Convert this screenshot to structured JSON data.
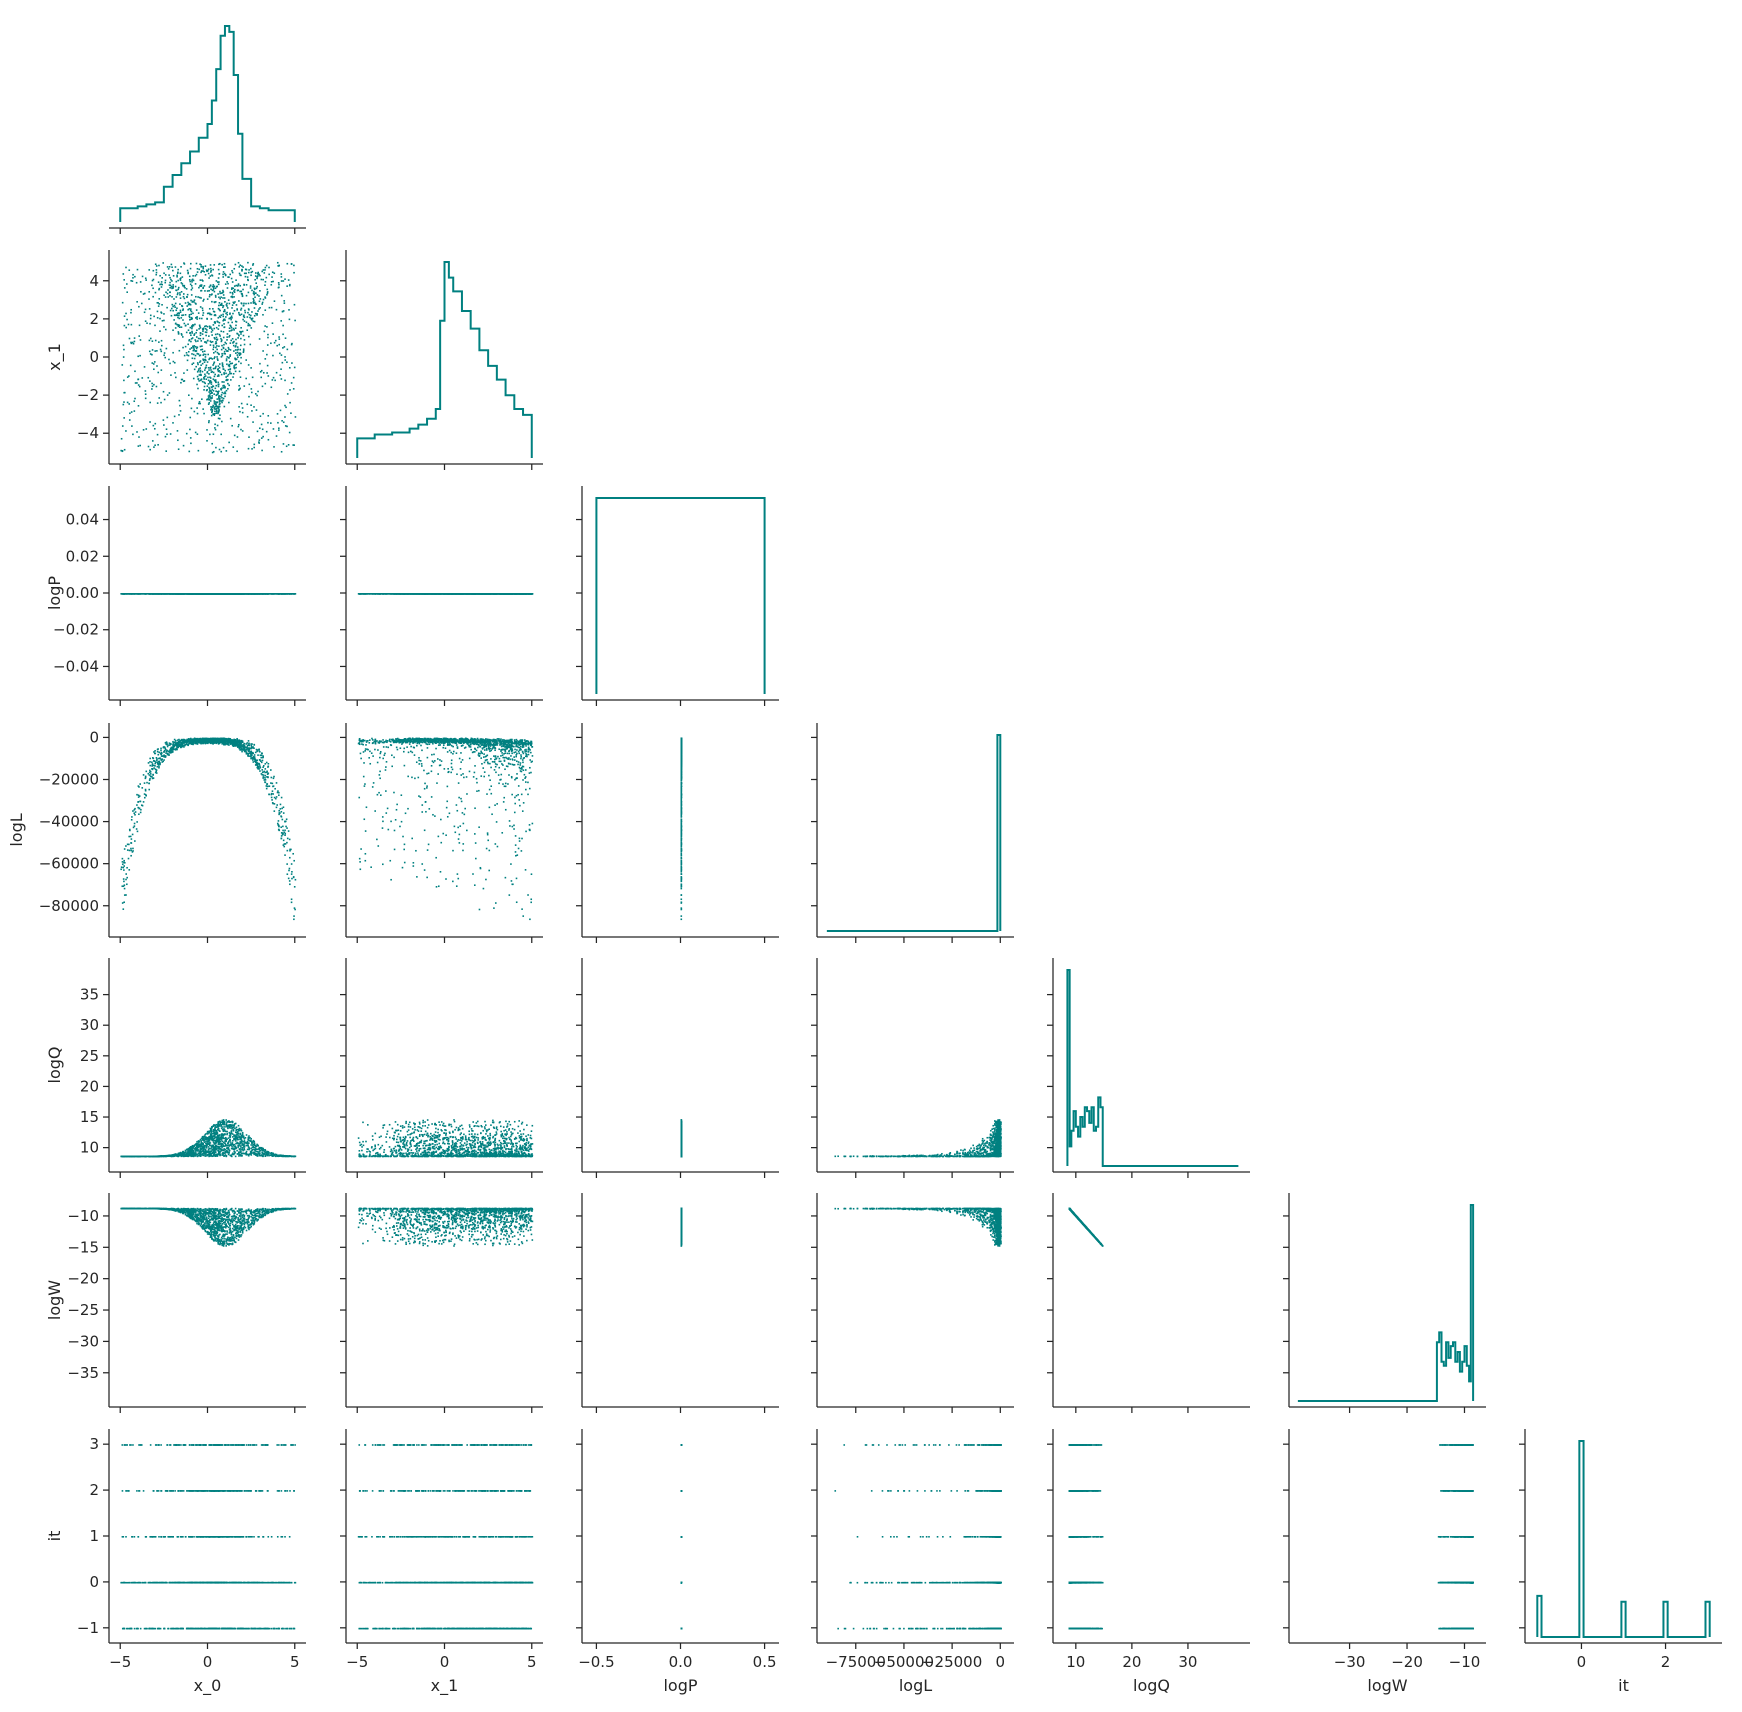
{
  "chart_data": {
    "type": "scatter",
    "title": "",
    "variables": [
      "x_0",
      "x_1",
      "logP",
      "logL",
      "logQ",
      "logW",
      "it"
    ],
    "color": "#008080",
    "layout": "corner",
    "grid": false,
    "axes": {
      "x_0": {
        "range": [
          -5.3,
          5.3
        ],
        "ticks": [
          -5,
          0,
          5
        ],
        "tick_labels": [
          "−5",
          "0",
          "5"
        ]
      },
      "x_1": {
        "range": [
          -5.3,
          5.3
        ],
        "ticks": [
          -4,
          -2,
          0,
          2,
          4
        ],
        "tick_labels": [
          "−4",
          "−2",
          "0",
          "2",
          "4"
        ],
        "bottom_ticks": [
          -5,
          0,
          5
        ],
        "bottom_tick_labels": [
          "−5",
          "0",
          "5"
        ]
      },
      "logP": {
        "range": [
          -0.055,
          0.055
        ],
        "ticks": [
          -0.04,
          -0.02,
          0.0,
          0.02,
          0.04
        ],
        "tick_labels": [
          "−0.04",
          "−0.02",
          "0.00",
          "0.02",
          "0.04"
        ],
        "bottom_range": [
          -0.55,
          0.55
        ],
        "bottom_ticks": [
          -0.5,
          0.0,
          0.5
        ],
        "bottom_tick_labels": [
          "−0.5",
          "0.0",
          "0.5"
        ]
      },
      "logL": {
        "range": [
          -92000,
          4000
        ],
        "ticks": [
          -80000,
          -60000,
          -40000,
          -20000,
          0
        ],
        "tick_labels": [
          "−80000",
          "−60000",
          "−40000",
          "−20000",
          "0"
        ],
        "bottom_ticks": [
          -75000,
          -50000,
          -25000,
          0
        ],
        "bottom_tick_labels": [
          "−75000",
          "−50000",
          "−25000",
          "0"
        ]
      },
      "logQ": {
        "range": [
          7.0,
          40.0
        ],
        "ticks": [
          10,
          15,
          20,
          25,
          30,
          35
        ],
        "tick_labels": [
          "10",
          "15",
          "20",
          "25",
          "30",
          "35"
        ],
        "bottom_ticks": [
          10,
          20,
          30
        ],
        "bottom_tick_labels": [
          "10",
          "20",
          "30"
        ]
      },
      "logW": {
        "range": [
          -39.5,
          -7.3
        ],
        "ticks": [
          -35,
          -30,
          -25,
          -20,
          -15,
          -10
        ],
        "tick_labels": [
          "−35",
          "−30",
          "−25",
          "−20",
          "−15",
          "−10"
        ],
        "bottom_ticks": [
          -30,
          -20,
          -10
        ],
        "bottom_tick_labels": [
          "−30",
          "−20",
          "−10"
        ]
      },
      "it": {
        "range": [
          -1.2,
          3.2
        ],
        "ticks": [
          -1,
          0,
          1,
          2,
          3
        ],
        "tick_labels": [
          "−1",
          "0",
          "1",
          "2",
          "3"
        ],
        "bottom_ticks": [
          0,
          2
        ],
        "bottom_tick_labels": [
          "0",
          "2"
        ]
      }
    },
    "histograms": {
      "x_0": {
        "edges": [
          -5,
          -4.5,
          -4,
          -3.5,
          -3,
          -2.5,
          -2,
          -1.5,
          -1,
          -0.5,
          0,
          0.25,
          0.5,
          0.75,
          1,
          1.25,
          1.5,
          1.75,
          2,
          2.5,
          3,
          3.5,
          4,
          4.5,
          5
        ],
        "counts": [
          0.07,
          0.07,
          0.08,
          0.09,
          0.1,
          0.18,
          0.24,
          0.3,
          0.36,
          0.43,
          0.5,
          0.62,
          0.78,
          0.95,
          1.0,
          0.97,
          0.75,
          0.45,
          0.22,
          0.08,
          0.07,
          0.06,
          0.06,
          0.06
        ]
      },
      "x_1": {
        "edges": [
          -5,
          -4,
          -3,
          -2,
          -1.5,
          -1,
          -0.5,
          -0.25,
          0,
          0.25,
          0.5,
          1,
          1.5,
          2,
          2.5,
          3,
          3.5,
          4,
          4.5,
          5
        ],
        "counts": [
          0.1,
          0.12,
          0.13,
          0.15,
          0.17,
          0.2,
          0.25,
          0.7,
          1.0,
          0.92,
          0.85,
          0.75,
          0.66,
          0.55,
          0.47,
          0.4,
          0.32,
          0.25,
          0.22
        ]
      },
      "logP": {
        "edges": [
          -0.5,
          0.5
        ],
        "counts": [
          1.0
        ]
      },
      "logL": {
        "edges": [
          -90000,
          -1500,
          0
        ],
        "counts": [
          0.0,
          1.0
        ]
      },
      "logQ": {
        "edges": [
          8.5,
          8.9,
          9.2,
          9.6,
          10,
          10.4,
          10.8,
          11.2,
          11.6,
          12,
          12.4,
          12.8,
          13.2,
          13.6,
          14,
          14.4,
          14.8,
          39
        ],
        "counts": [
          1.0,
          0.1,
          0.18,
          0.28,
          0.2,
          0.15,
          0.25,
          0.2,
          0.3,
          0.28,
          0.22,
          0.3,
          0.18,
          0.2,
          0.35,
          0.3,
          0.0
        ]
      },
      "logW": {
        "edges": [
          -39,
          -14.8,
          -14.4,
          -14,
          -13.6,
          -13.2,
          -12.8,
          -12.4,
          -12,
          -11.6,
          -11.2,
          -10.8,
          -10.4,
          -10,
          -9.6,
          -9.2,
          -8.9,
          -8.5
        ],
        "counts": [
          0.0,
          0.3,
          0.35,
          0.2,
          0.18,
          0.3,
          0.22,
          0.28,
          0.3,
          0.2,
          0.25,
          0.15,
          0.2,
          0.28,
          0.18,
          0.1,
          1.0
        ]
      },
      "it": {
        "edges": [
          -1.05,
          -0.95,
          -0.05,
          0.05,
          0.95,
          1.05,
          1.95,
          2.05,
          2.95,
          3.05
        ],
        "counts": [
          0.21,
          0.0,
          1.0,
          0.0,
          0.18,
          0.0,
          0.18,
          0.0,
          0.18
        ]
      }
    }
  }
}
